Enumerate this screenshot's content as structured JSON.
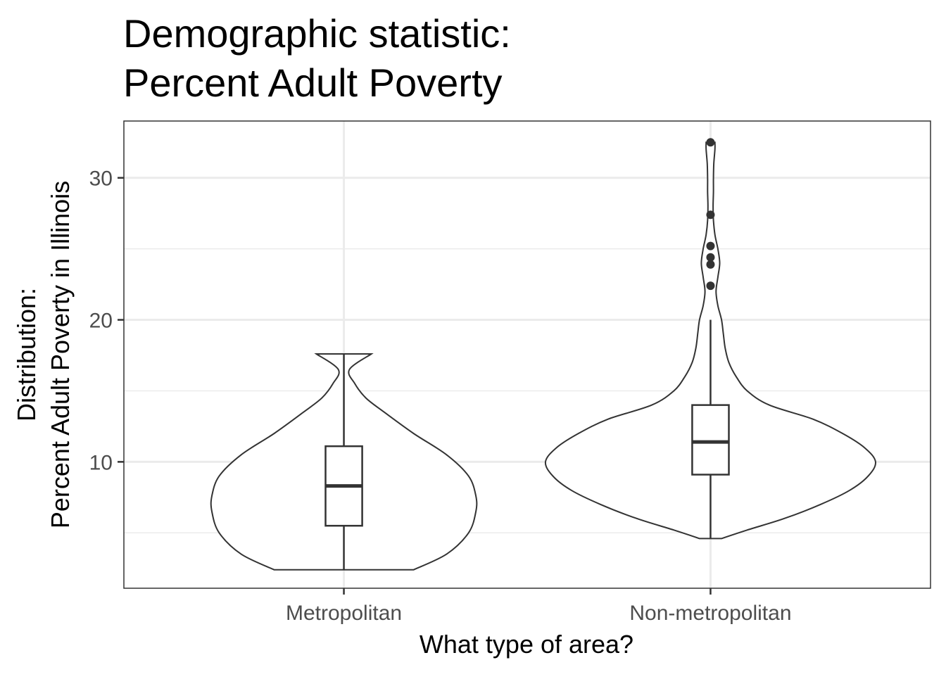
{
  "title_line1": "Demographic statistic:",
  "title_line2": "Percent Adult Poverty",
  "chart_data": {
    "type": "violin",
    "title": "Demographic statistic:\nPercent Adult Poverty",
    "xlabel": "What type of area?",
    "ylabel_line1": "Distribution:",
    "ylabel_line2": "Percent Adult Poverty in Illinois",
    "ylim": [
      1.1,
      34.0
    ],
    "yticks": [
      10,
      20,
      30
    ],
    "ytick_labels": [
      "10",
      "20",
      "30"
    ],
    "minor_gridlines": [
      5,
      15,
      25
    ],
    "grid": true,
    "categories": [
      "Metropolitan",
      "Non-metropolitan"
    ],
    "violins": [
      {
        "category": "Metropolitan",
        "min": 2.4,
        "max": 17.6,
        "half_width_profile": [
          [
            2.4,
            0.19
          ],
          [
            3.5,
            0.28
          ],
          [
            5.0,
            0.34
          ],
          [
            6.5,
            0.36
          ],
          [
            7.6,
            0.36
          ],
          [
            9.0,
            0.34
          ],
          [
            10.5,
            0.28
          ],
          [
            12.0,
            0.19
          ],
          [
            13.5,
            0.11
          ],
          [
            14.5,
            0.06
          ],
          [
            15.5,
            0.03
          ],
          [
            16.5,
            0.015
          ],
          [
            17.6,
            0.075
          ]
        ],
        "box": {
          "q1": 5.5,
          "median": 8.3,
          "q3": 11.1,
          "whisker_low": 2.4,
          "whisker_high": 17.6
        },
        "outliers": []
      },
      {
        "category": "Non-metropolitan",
        "min": 4.6,
        "max": 32.5,
        "half_width_profile": [
          [
            4.6,
            0.03
          ],
          [
            5.2,
            0.1
          ],
          [
            6.0,
            0.2
          ],
          [
            7.0,
            0.3
          ],
          [
            8.0,
            0.38
          ],
          [
            9.0,
            0.43
          ],
          [
            10.0,
            0.45
          ],
          [
            11.0,
            0.42
          ],
          [
            12.0,
            0.36
          ],
          [
            13.0,
            0.28
          ],
          [
            14.0,
            0.16
          ],
          [
            15.0,
            0.1
          ],
          [
            16.0,
            0.07
          ],
          [
            17.0,
            0.05
          ],
          [
            18.0,
            0.04
          ],
          [
            19.0,
            0.035
          ],
          [
            20.0,
            0.03
          ],
          [
            21.0,
            0.02
          ],
          [
            22.0,
            0.015
          ],
          [
            23.0,
            0.02
          ],
          [
            24.0,
            0.025
          ],
          [
            25.0,
            0.02
          ],
          [
            26.0,
            0.012
          ],
          [
            27.0,
            0.008
          ],
          [
            28.0,
            0.007
          ],
          [
            29.0,
            0.008
          ],
          [
            30.0,
            0.008
          ],
          [
            31.0,
            0.009
          ],
          [
            32.0,
            0.012
          ],
          [
            32.5,
            0.012
          ]
        ],
        "box": {
          "q1": 9.1,
          "median": 11.4,
          "q3": 14.0,
          "whisker_low": 4.6,
          "whisker_high": 20.0
        },
        "outliers": [
          22.4,
          23.9,
          24.4,
          25.2,
          27.4,
          32.5
        ]
      }
    ]
  }
}
